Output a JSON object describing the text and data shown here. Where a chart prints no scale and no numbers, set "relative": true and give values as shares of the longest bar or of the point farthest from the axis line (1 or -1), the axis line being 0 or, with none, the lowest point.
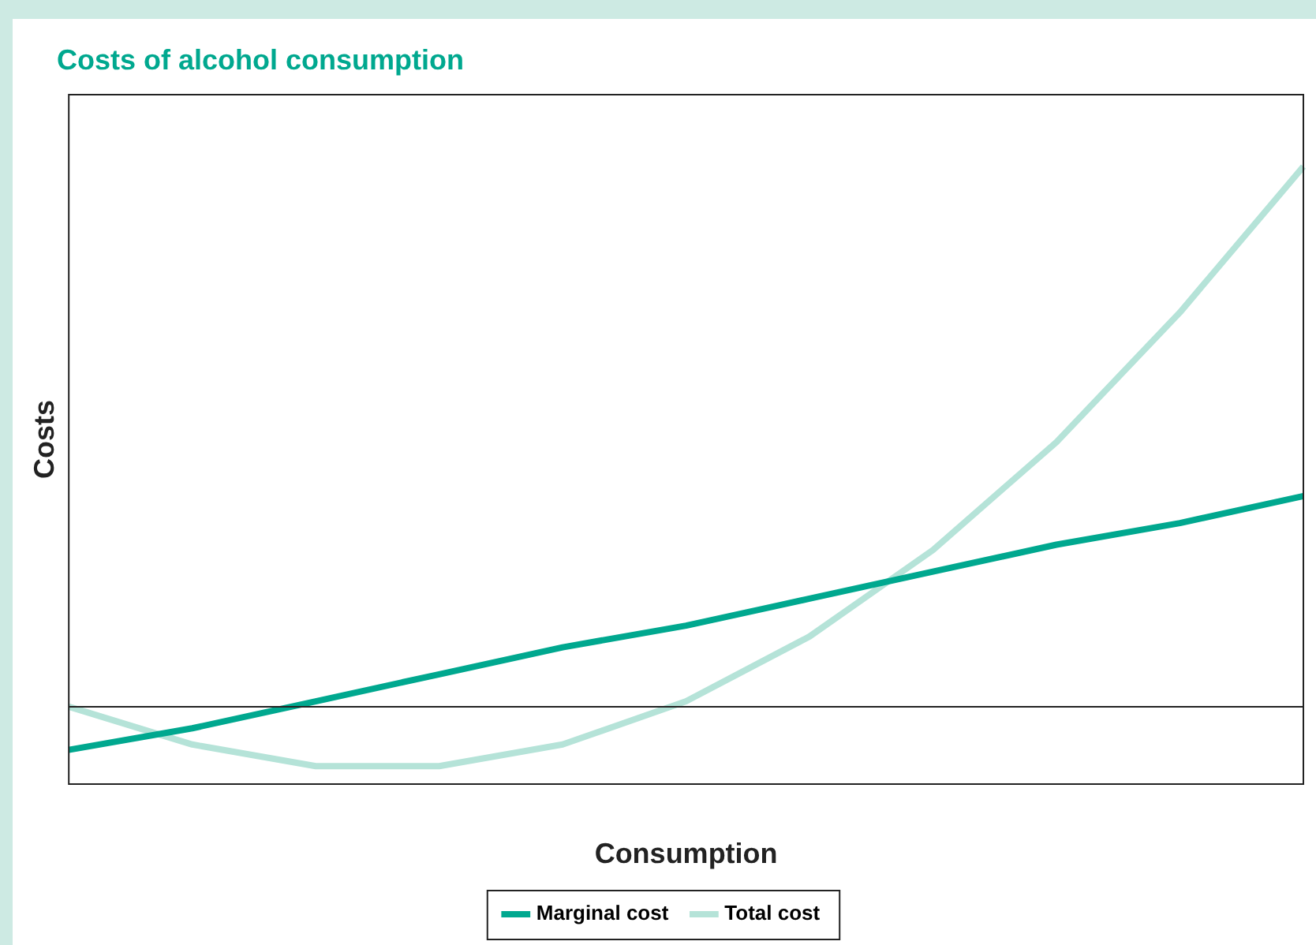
{
  "chart_data": {
    "type": "line",
    "title": "Costs of alcohol consumption",
    "xlabel": "Consumption",
    "ylabel": "Costs",
    "relative": true,
    "legend": "bottom",
    "grid": false,
    "marker": "none",
    "categories": [
      null,
      null,
      null,
      null,
      null,
      null,
      null,
      null,
      null,
      null,
      null
    ],
    "series": [
      {
        "name": "Marginal cost",
        "color": "#00a88f",
        "values": [
          -0.08,
          -0.04,
          0.01,
          0.06,
          0.11,
          0.15,
          0.2,
          0.25,
          0.3,
          0.34,
          0.39
        ]
      },
      {
        "name": "Total cost",
        "color": "#b5e3d8",
        "values": [
          0,
          -0.07,
          -0.11,
          -0.11,
          -0.07,
          0.01,
          0.13,
          0.29,
          0.49,
          0.73,
          1
        ]
      }
    ]
  }
}
